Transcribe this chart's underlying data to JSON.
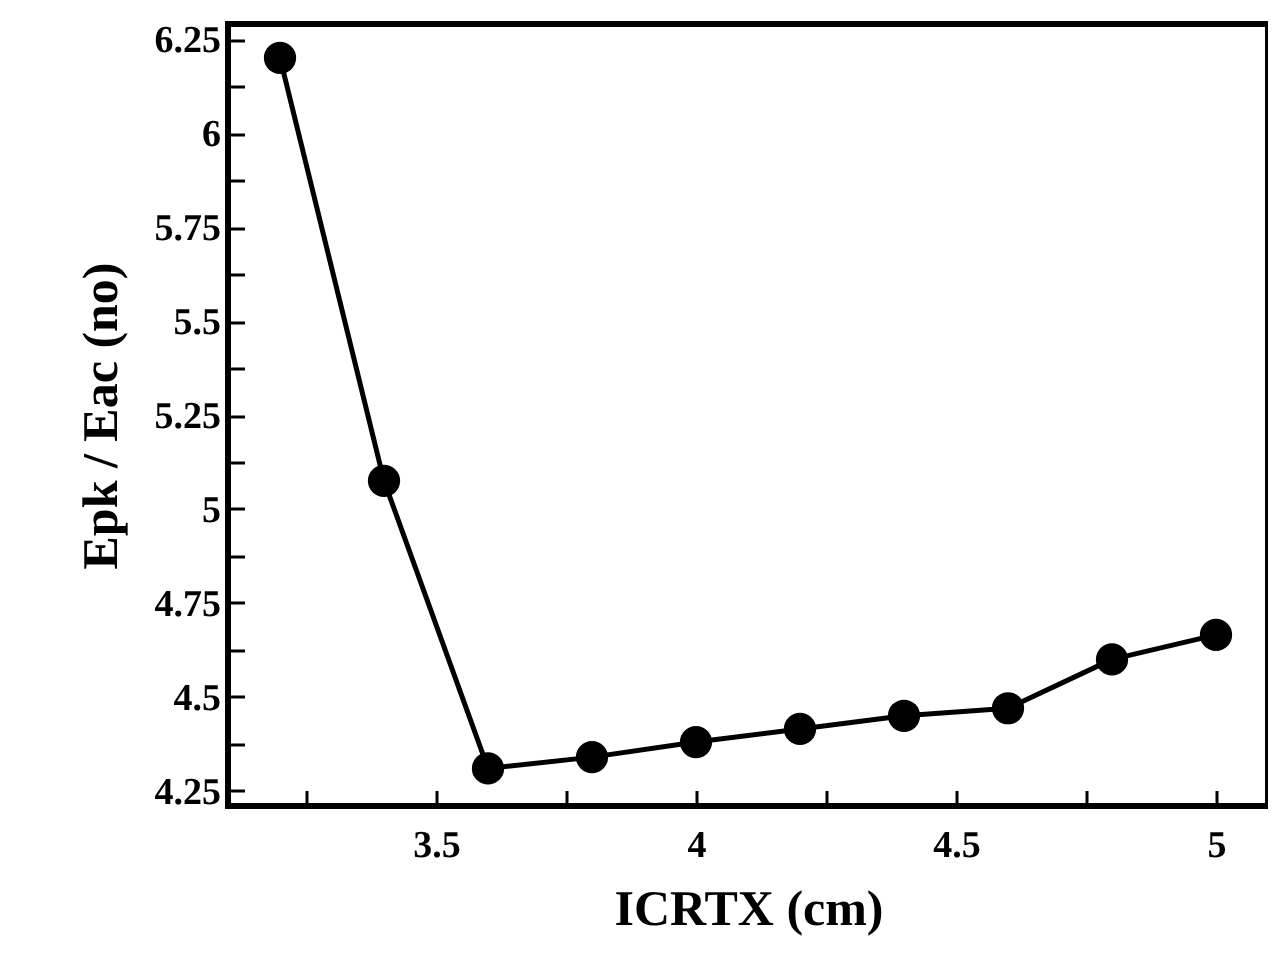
{
  "chart_data": {
    "type": "line",
    "xlabel": "ICRTX (cm)",
    "ylabel": "Epk / Eac (no)",
    "x": [
      3.2,
      3.4,
      3.6,
      3.8,
      4.0,
      4.2,
      4.4,
      4.6,
      4.8,
      5.0
    ],
    "series": [
      {
        "color": "#000000",
        "values": [
          6.2,
          5.075,
          4.31,
          4.34,
          4.38,
          4.415,
          4.45,
          4.47,
          4.6,
          4.665
        ]
      }
    ],
    "xlim": [
      3.1,
      5.1
    ],
    "xticks": [
      {
        "value": 3.25,
        "label": null
      },
      3.5,
      {
        "value": 3.75,
        "label": null
      },
      4,
      {
        "value": 4.25,
        "label": null
      },
      4.5,
      {
        "value": 4.75,
        "label": null
      },
      5
    ],
    "ylim": [
      4.21,
      6.29
    ],
    "yticks": [
      4.25,
      {
        "value": 4.375,
        "label": null
      },
      4.5,
      {
        "value": 4.625,
        "label": null
      },
      4.75,
      {
        "value": 4.875,
        "label": null
      },
      5,
      {
        "value": 5.125,
        "label": null
      },
      5.25,
      {
        "value": 5.375,
        "label": null
      },
      5.5,
      {
        "value": 5.625,
        "label": null
      },
      5.75,
      {
        "value": 5.875,
        "label": null
      },
      6,
      {
        "value": 6.125,
        "label": null
      },
      6.25
    ],
    "marker": "circle",
    "line_style": "solid",
    "grid": false
  }
}
